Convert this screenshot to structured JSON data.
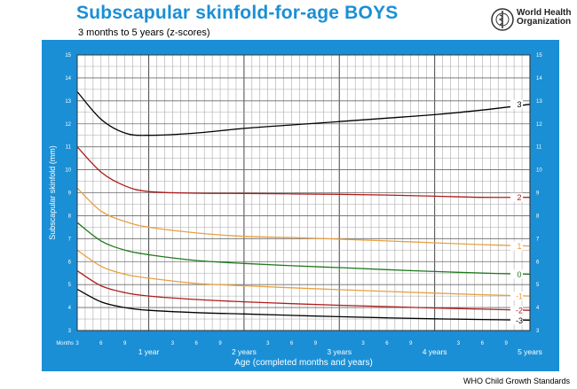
{
  "header": {
    "title": "Subscapular skinfold-for-age  BOYS",
    "subtitle": "3 months to 5 years (z-scores)",
    "org_line1": "World Health",
    "org_line2": "Organization",
    "logo_icon": "who-emblem-icon"
  },
  "footer": {
    "text": "WHO Child Growth Standards"
  },
  "colors": {
    "panel": "#1a8fd6",
    "z3": "#000000",
    "z2": "#b01c1c",
    "z1": "#e8a040",
    "z0": "#1e7a1e",
    "zneg1": "#e8a040",
    "zneg2": "#b01c1c",
    "zneg3": "#000000"
  },
  "chart_data": {
    "type": "line",
    "title": "Subscapular skinfold-for-age  BOYS",
    "subtitle": "3 months to 5 years (z-scores)",
    "xlabel": "Age (completed months and years)",
    "ylabel": "Subscapular skinfold (mm)",
    "x_unit_label": "Months",
    "xlim": [
      3,
      60
    ],
    "ylim": [
      3,
      15
    ],
    "grid": true,
    "x_month_ticks": [
      {
        "month": 3,
        "label": "3"
      },
      {
        "month": 6,
        "label": "6"
      },
      {
        "month": 9,
        "label": "9"
      },
      {
        "month": 15,
        "label": "3"
      },
      {
        "month": 18,
        "label": "6"
      },
      {
        "month": 21,
        "label": "9"
      },
      {
        "month": 27,
        "label": "3"
      },
      {
        "month": 30,
        "label": "6"
      },
      {
        "month": 33,
        "label": "9"
      },
      {
        "month": 39,
        "label": "3"
      },
      {
        "month": 42,
        "label": "6"
      },
      {
        "month": 45,
        "label": "9"
      },
      {
        "month": 51,
        "label": "3"
      },
      {
        "month": 54,
        "label": "6"
      },
      {
        "month": 57,
        "label": "9"
      }
    ],
    "x_year_ticks": [
      {
        "month": 12,
        "label": "1 year"
      },
      {
        "month": 24,
        "label": "2 years"
      },
      {
        "month": 36,
        "label": "3 years"
      },
      {
        "month": 48,
        "label": "4 years"
      },
      {
        "month": 60,
        "label": "5 years"
      }
    ],
    "y_ticks": [
      "3",
      "4",
      "5",
      "6",
      "7",
      "8",
      "9",
      "10",
      "11",
      "12",
      "13",
      "14",
      "15"
    ],
    "x": [
      3,
      6,
      9,
      12,
      18,
      24,
      30,
      36,
      42,
      48,
      54,
      60
    ],
    "series": [
      {
        "name": "3",
        "values": [
          13.4,
          12.2,
          11.6,
          11.5,
          11.6,
          11.8,
          11.95,
          12.1,
          12.25,
          12.4,
          12.6,
          12.85
        ]
      },
      {
        "name": "2",
        "values": [
          11.0,
          9.9,
          9.3,
          9.05,
          8.98,
          8.97,
          8.95,
          8.93,
          8.9,
          8.85,
          8.8,
          8.8
        ]
      },
      {
        "name": "1",
        "values": [
          9.2,
          8.2,
          7.75,
          7.5,
          7.25,
          7.1,
          7.05,
          6.98,
          6.9,
          6.82,
          6.74,
          6.68
        ]
      },
      {
        "name": "0",
        "values": [
          7.7,
          6.9,
          6.5,
          6.3,
          6.05,
          5.92,
          5.82,
          5.74,
          5.65,
          5.57,
          5.5,
          5.45
        ]
      },
      {
        "name": "-1",
        "values": [
          6.5,
          5.8,
          5.45,
          5.28,
          5.05,
          4.95,
          4.86,
          4.78,
          4.7,
          4.63,
          4.56,
          4.5
        ]
      },
      {
        "name": "-2",
        "values": [
          5.6,
          4.95,
          4.65,
          4.5,
          4.35,
          4.25,
          4.17,
          4.1,
          4.04,
          3.98,
          3.93,
          3.88
        ]
      },
      {
        "name": "-3",
        "values": [
          4.8,
          4.25,
          4.0,
          3.88,
          3.78,
          3.72,
          3.66,
          3.6,
          3.55,
          3.51,
          3.48,
          3.45
        ]
      }
    ]
  }
}
